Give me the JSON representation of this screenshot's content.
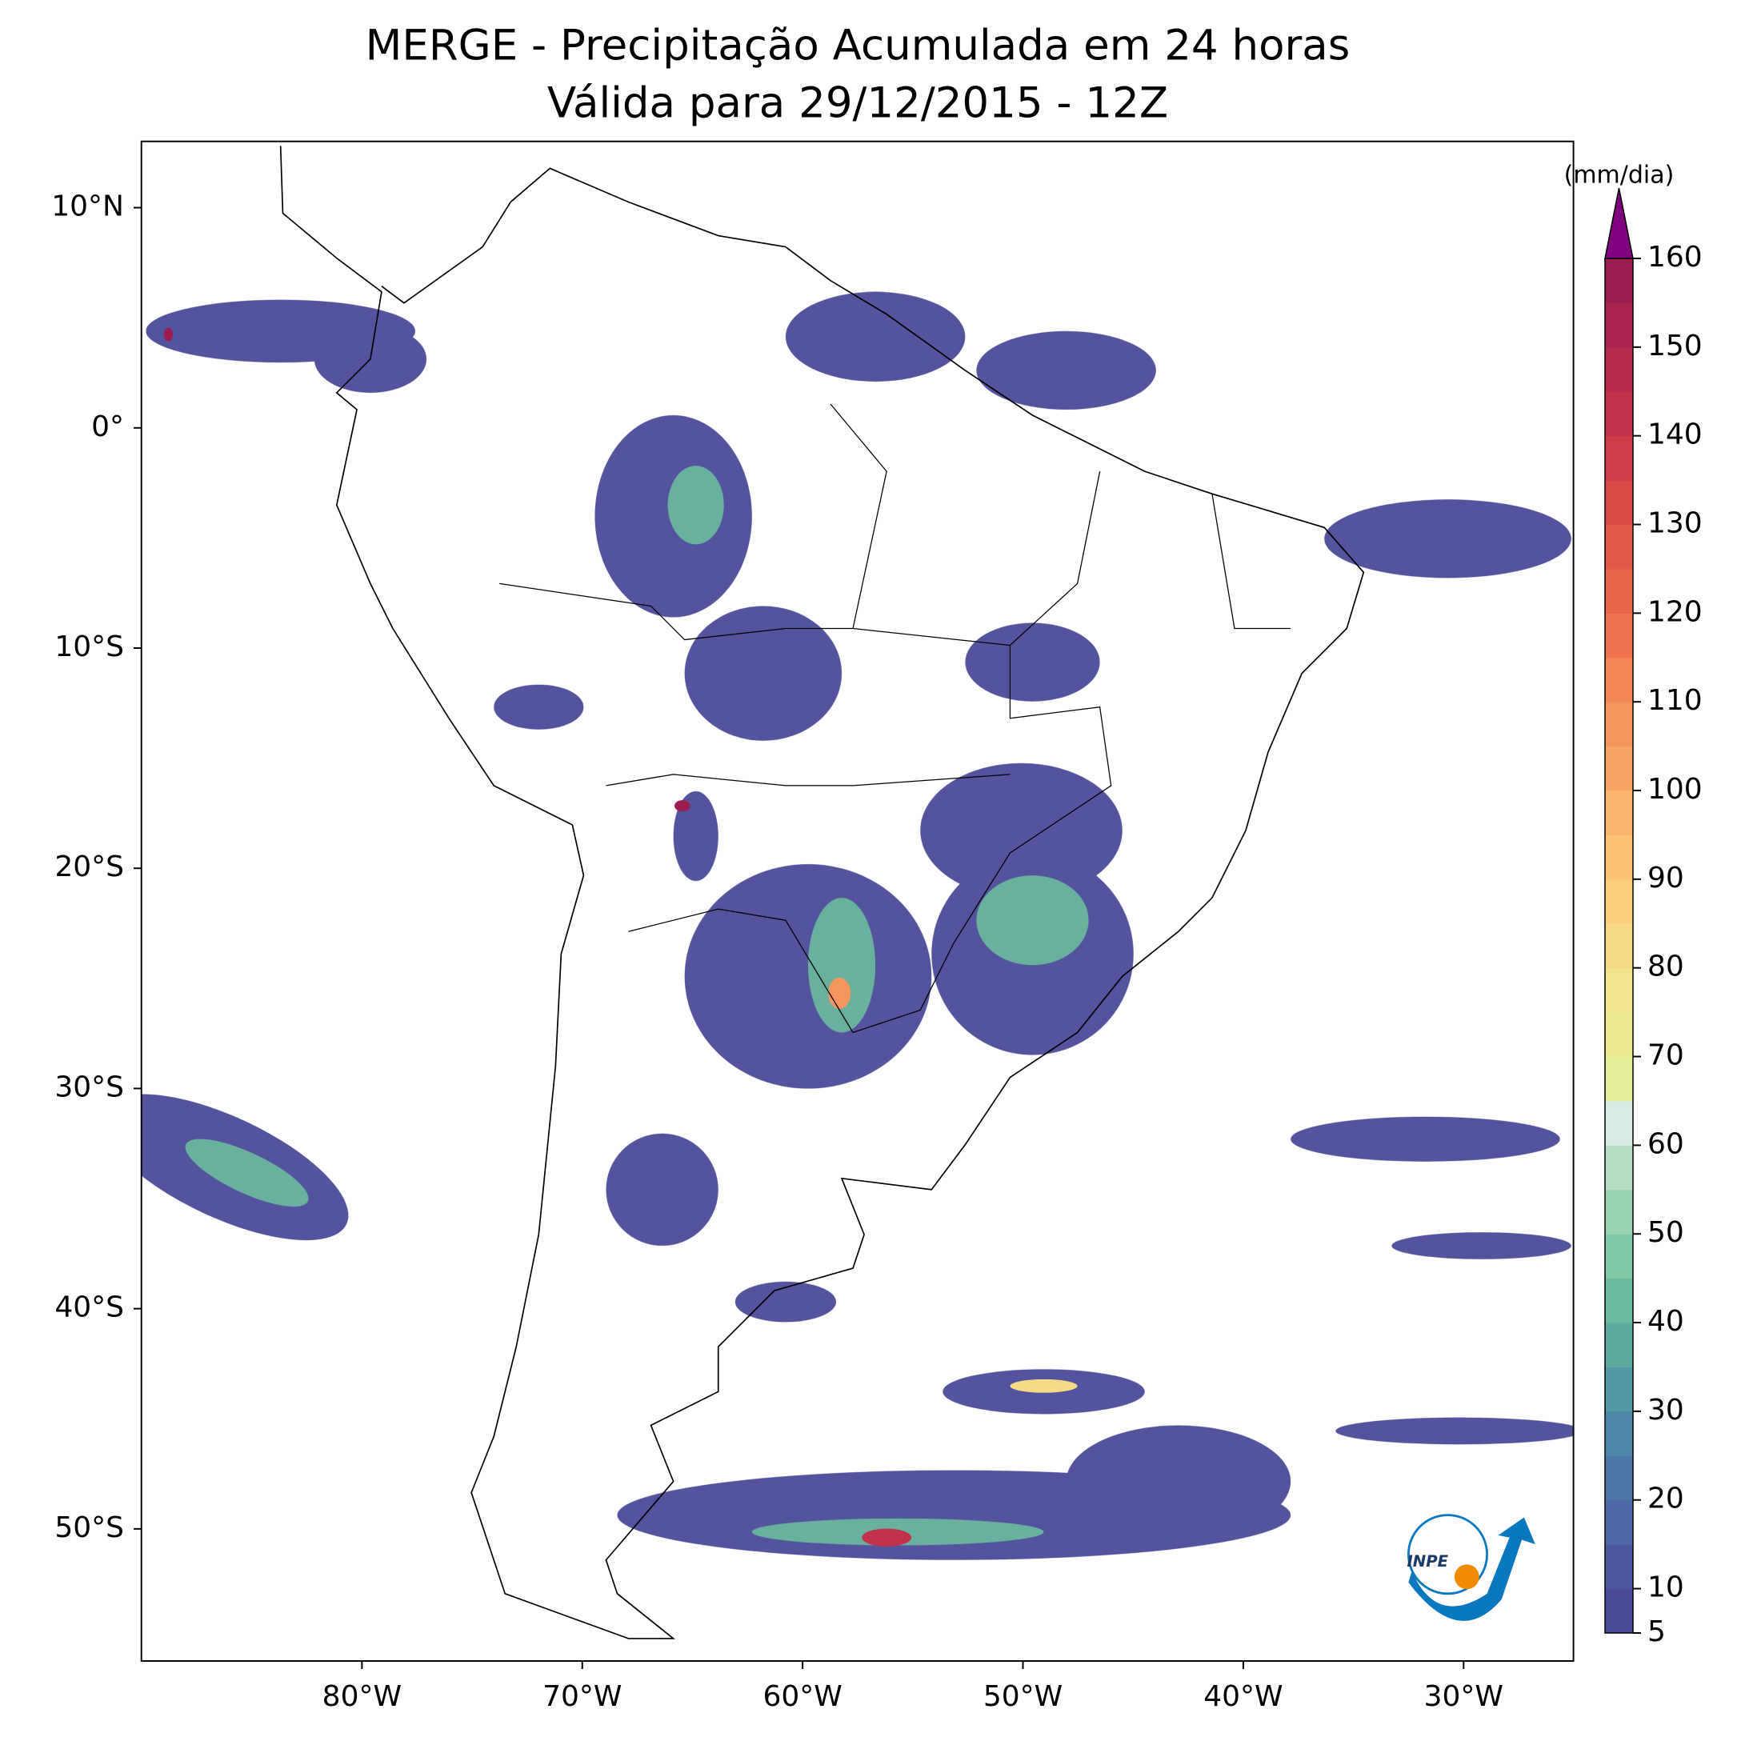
{
  "chart_data": {
    "type": "map",
    "title": "MERGE - Precipitação Acumulada em 24 horas",
    "subtitle": "Válida para 29/12/2015 - 12Z",
    "xlim": [
      -90,
      -25
    ],
    "ylim": [
      -56,
      13
    ],
    "xticks": [
      {
        "value": -80,
        "label": "80°W"
      },
      {
        "value": -70,
        "label": "70°W"
      },
      {
        "value": -60,
        "label": "60°W"
      },
      {
        "value": -50,
        "label": "50°W"
      },
      {
        "value": -40,
        "label": "40°W"
      },
      {
        "value": -30,
        "label": "30°W"
      }
    ],
    "yticks": [
      {
        "value": 10,
        "label": "10°N"
      },
      {
        "value": 0,
        "label": "0°"
      },
      {
        "value": -10,
        "label": "10°S"
      },
      {
        "value": -20,
        "label": "20°S"
      },
      {
        "value": -30,
        "label": "30°S"
      },
      {
        "value": -40,
        "label": "40°S"
      },
      {
        "value": -50,
        "label": "50°S"
      }
    ],
    "colorbar": {
      "label": "(mm/dia)",
      "lim": [
        5,
        160
      ],
      "ticks": [
        5,
        10,
        20,
        30,
        40,
        50,
        60,
        70,
        80,
        90,
        100,
        110,
        120,
        130,
        140,
        150,
        160
      ],
      "colors": [
        "#4a4a99",
        "#4e58a1",
        "#4f68a6",
        "#4f78a8",
        "#4f88a6",
        "#5399a4",
        "#5eaaa0",
        "#6cbb9f",
        "#82c8a6",
        "#9ad2b0",
        "#b4ddc4",
        "#d6ebe4",
        "#e3ec96",
        "#ebe88f",
        "#f2e38c",
        "#f7da86",
        "#fad07d",
        "#fbc274",
        "#fbb46c",
        "#f9a565",
        "#f6955d",
        "#f38557",
        "#ee7550",
        "#e8664b",
        "#e05848",
        "#d64a47",
        "#cc3d48",
        "#c0334a",
        "#b42b4c",
        "#a8234e",
        "#9b1d50"
      ],
      "extend_color": "#800080"
    },
    "logo_text": "INPE"
  }
}
